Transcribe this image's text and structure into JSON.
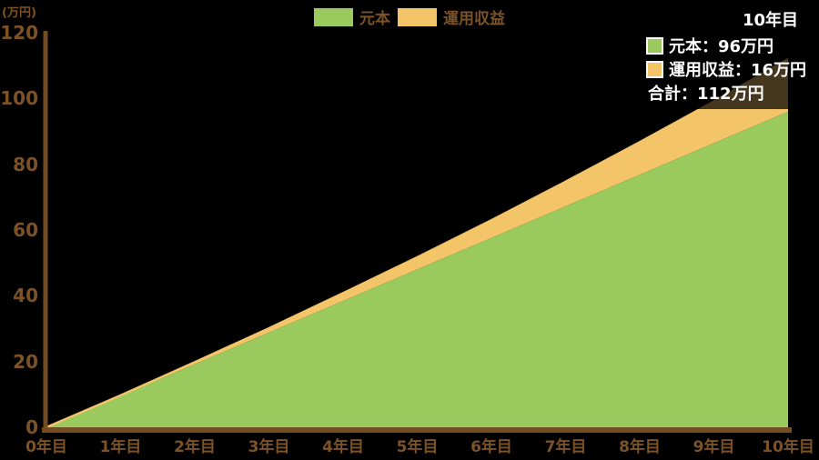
{
  "page": {
    "background": "#000000"
  },
  "colors": {
    "principal": "#9aca5e",
    "returns": "#f4c468",
    "axis": "#734c22",
    "label_brown": "#7c5227",
    "tooltip_bg": "rgba(0,0,0,0.72)",
    "tooltip_text": "#ffffff"
  },
  "y_axis": {
    "unit_label": "(万円)",
    "ticks": [
      120,
      100,
      80,
      60,
      40,
      20,
      0
    ],
    "min": 0,
    "max": 120
  },
  "x_axis": {
    "labels": [
      "0年目",
      "1年目",
      "2年目",
      "3年目",
      "4年目",
      "5年目",
      "6年目",
      "7年目",
      "8年目",
      "9年目",
      "10年目"
    ]
  },
  "legend": [
    {
      "label": "元本",
      "color": "#9aca5e"
    },
    {
      "label": "運用収益",
      "color": "#f4c468"
    }
  ],
  "hover": {
    "title": "10年目",
    "rows": [
      {
        "swatch": "#9aca5e",
        "label": "元本：96万円"
      },
      {
        "swatch": "#f4c468",
        "label": "運用収益：16万円"
      }
    ],
    "total": "合計：112万円"
  },
  "chart_data": {
    "type": "area",
    "stacked": true,
    "title": "",
    "ylabel": "(万円)",
    "ylim": [
      0,
      120
    ],
    "grid": false,
    "legend_position": "top-center",
    "x": [
      0,
      1,
      2,
      3,
      4,
      5,
      6,
      7,
      8,
      9,
      10
    ],
    "x_tick_labels": [
      "0年目",
      "1年目",
      "2年目",
      "3年目",
      "4年目",
      "5年目",
      "6年目",
      "7年目",
      "8年目",
      "9年目",
      "10年目"
    ],
    "series": [
      {
        "name": "元本",
        "color": "#9aca5e",
        "values": [
          0,
          9.6,
          19.2,
          28.8,
          38.4,
          48,
          57.6,
          67.2,
          76.8,
          86.4,
          96
        ]
      },
      {
        "name": "運用収益",
        "color": "#f4c468",
        "values": [
          0,
          0.1,
          0.6,
          1.3,
          2.4,
          3.7,
          5.4,
          7.5,
          9.9,
          12.7,
          16
        ]
      }
    ],
    "annotation": {
      "x_label": "10年目",
      "principal": 96,
      "returns": 16,
      "total": 112
    }
  }
}
